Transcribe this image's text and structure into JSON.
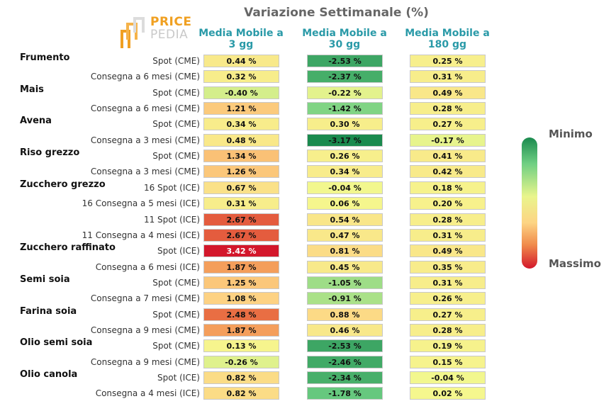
{
  "title": "Variazione Settimanale (%)",
  "logo": {
    "line1": "PRICE",
    "line2": "PEDIA"
  },
  "chart_data": {
    "type": "table",
    "columns": [
      "Media Mobile a 3 gg",
      "Media Mobile a 30 gg",
      "Media Mobile a 180 gg"
    ],
    "column_lines": [
      [
        "Media Mobile a",
        "3 gg"
      ],
      [
        "Media Mobile a",
        "30 gg"
      ],
      [
        "Media Mobile a",
        "180 gg"
      ]
    ],
    "groups": [
      {
        "name": "Frumento",
        "rows": [
          {
            "label": "Spot (CME)",
            "values": [
              0.44,
              -2.53,
              0.25
            ],
            "texts": [
              "0.44 %",
              "-2.53 %",
              "0.25 %"
            ]
          },
          {
            "label": "Consegna a 6 mesi (CME)",
            "values": [
              0.32,
              -2.37,
              0.31
            ],
            "texts": [
              "0.32 %",
              "-2.37 %",
              "0.31 %"
            ]
          }
        ]
      },
      {
        "name": "Mais",
        "rows": [
          {
            "label": "Spot (CME)",
            "values": [
              -0.4,
              -0.22,
              0.49
            ],
            "texts": [
              "-0.40 %",
              "-0.22 %",
              "0.49 %"
            ]
          },
          {
            "label": "Consegna a 6 mesi (CME)",
            "values": [
              1.21,
              -1.42,
              0.28
            ],
            "texts": [
              "1.21 %",
              "-1.42 %",
              "0.28 %"
            ]
          }
        ]
      },
      {
        "name": "Avena",
        "rows": [
          {
            "label": "Spot (CME)",
            "values": [
              0.34,
              0.3,
              0.27
            ],
            "texts": [
              "0.34 %",
              "0.30 %",
              "0.27 %"
            ]
          },
          {
            "label": "Consegna a 3 mesi (CME)",
            "values": [
              0.48,
              -3.17,
              -0.17
            ],
            "texts": [
              "0.48 %",
              "-3.17 %",
              "-0.17 %"
            ]
          }
        ]
      },
      {
        "name": "Riso grezzo",
        "rows": [
          {
            "label": "Spot (CME)",
            "values": [
              1.34,
              0.26,
              0.41
            ],
            "texts": [
              "1.34 %",
              "0.26 %",
              "0.41 %"
            ]
          },
          {
            "label": "Consegna a 3 mesi (CME)",
            "values": [
              1.26,
              0.34,
              0.42
            ],
            "texts": [
              "1.26 %",
              "0.34 %",
              "0.42 %"
            ]
          }
        ]
      },
      {
        "name": "Zucchero grezzo",
        "rows": [
          {
            "label": "16 Spot (ICE)",
            "values": [
              0.67,
              -0.04,
              0.18
            ],
            "texts": [
              "0.67 %",
              "-0.04 %",
              "0.18 %"
            ]
          },
          {
            "label": "16 Consegna a 5 mesi (ICE)",
            "values": [
              0.31,
              0.06,
              0.2
            ],
            "texts": [
              "0.31 %",
              "0.06 %",
              "0.20 %"
            ]
          },
          {
            "label": "11 Spot (ICE)",
            "values": [
              2.67,
              0.54,
              0.28
            ],
            "texts": [
              "2.67 %",
              "0.54 %",
              "0.28 %"
            ]
          },
          {
            "label": "11 Consegna a 4 mesi (ICE)",
            "values": [
              2.67,
              0.47,
              0.31
            ],
            "texts": [
              "2.67 %",
              "0.47 %",
              "0.31 %"
            ]
          }
        ]
      },
      {
        "name": "Zucchero raffinato",
        "rows": [
          {
            "label": "Spot (ICE)",
            "values": [
              3.42,
              0.81,
              0.49
            ],
            "texts": [
              "3.42 %",
              "0.81 %",
              "0.49 %"
            ]
          },
          {
            "label": "Consegna a 6 mesi (ICE)",
            "values": [
              1.87,
              0.45,
              0.35
            ],
            "texts": [
              "1.87 %",
              "0.45 %",
              "0.35 %"
            ]
          }
        ]
      },
      {
        "name": "Semi soia",
        "rows": [
          {
            "label": "Spot (CME)",
            "values": [
              1.25,
              -1.05,
              0.31
            ],
            "texts": [
              "1.25 %",
              "-1.05 %",
              "0.31 %"
            ]
          },
          {
            "label": "Consegna a 7 mesi (CME)",
            "values": [
              1.08,
              -0.91,
              0.26
            ],
            "texts": [
              "1.08 %",
              "-0.91 %",
              "0.26 %"
            ]
          }
        ]
      },
      {
        "name": "Farina soia",
        "rows": [
          {
            "label": "Spot (CME)",
            "values": [
              2.48,
              0.88,
              0.27
            ],
            "texts": [
              "2.48 %",
              "0.88 %",
              "0.27 %"
            ]
          },
          {
            "label": "Consegna a 9 mesi (CME)",
            "values": [
              1.87,
              0.46,
              0.28
            ],
            "texts": [
              "1.87 %",
              "0.46 %",
              "0.28 %"
            ]
          }
        ]
      },
      {
        "name": "Olio semi soia",
        "rows": [
          {
            "label": "Spot (CME)",
            "values": [
              0.13,
              -2.53,
              0.19
            ],
            "texts": [
              "0.13 %",
              "-2.53 %",
              "0.19 %"
            ]
          },
          {
            "label": "Consegna a 9 mesi (CME)",
            "values": [
              -0.26,
              -2.46,
              0.15
            ],
            "texts": [
              "-0.26 %",
              "-2.46 %",
              "0.15 %"
            ]
          }
        ]
      },
      {
        "name": "Olio canola",
        "rows": [
          {
            "label": "Spot (ICE)",
            "values": [
              0.82,
              -2.34,
              -0.04
            ],
            "texts": [
              "0.82 %",
              "-2.34 %",
              "-0.04 %"
            ]
          },
          {
            "label": "Consegna a 4 mesi (ICE)",
            "values": [
              0.82,
              -1.78,
              0.02
            ],
            "texts": [
              "0.82 %",
              "-1.78 %",
              "0.02 %"
            ]
          }
        ]
      }
    ],
    "color_scale": {
      "min_label": "Minimo",
      "max_label": "Massimo",
      "min_color": "#1a8a4e",
      "mid_color": "#f5f88e",
      "max_color": "#d3172b"
    }
  }
}
